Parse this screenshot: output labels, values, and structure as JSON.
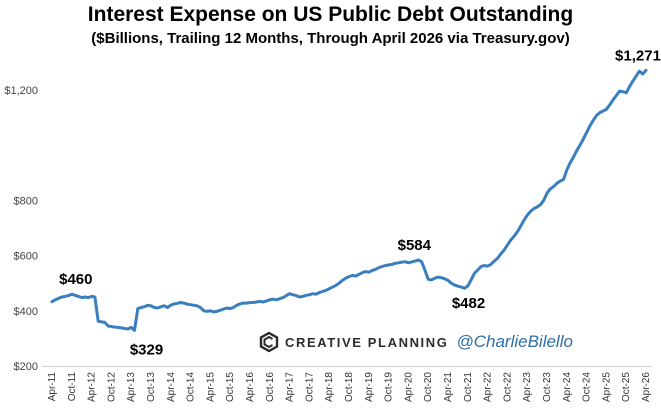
{
  "chart_data": {
    "type": "line",
    "title": "Interest Expense on US Public Debt Outstanding",
    "subtitle": "($Billions, Trailing 12 Months, Through April 2026 via Treasury.gov)",
    "xlabel": "",
    "ylabel": "",
    "ylim": [
      200,
      1300
    ],
    "y_ticks": [
      200,
      400,
      600,
      800,
      1200
    ],
    "y_tick_labels": [
      "$200",
      "$400",
      "$600",
      "$800",
      "$1,200"
    ],
    "x_tick_labels": [
      "Apr-11",
      "Oct-11",
      "Apr-12",
      "Oct-12",
      "Apr-13",
      "Oct-13",
      "Apr-14",
      "Oct-14",
      "Apr-15",
      "Oct-15",
      "Apr-16",
      "Oct-16",
      "Apr-17",
      "Oct-17",
      "Apr-18",
      "Oct-18",
      "Apr-19",
      "Oct-19",
      "Apr-20",
      "Oct-20",
      "Apr-21",
      "Oct-21",
      "Apr-22",
      "Oct-22",
      "Apr-23",
      "Oct-23",
      "Apr-24",
      "Oct-24",
      "Apr-25",
      "Oct-25",
      "Apr-26"
    ],
    "grid": false,
    "line_color": "#3a7ebf",
    "series": [
      {
        "x": [
          0,
          1,
          2,
          3,
          4,
          5,
          6,
          7,
          8,
          9,
          10,
          11,
          12,
          13,
          14,
          15,
          16,
          17,
          18,
          19,
          20,
          21,
          22,
          23,
          24,
          25,
          26,
          27,
          28,
          29,
          30,
          31,
          32,
          33,
          34,
          35,
          36,
          37,
          38,
          39,
          40,
          41,
          42,
          43,
          44,
          45,
          46,
          47,
          48,
          49,
          50,
          51,
          52,
          53,
          54,
          55,
          56,
          57,
          58,
          59,
          60,
          61,
          62,
          63,
          64,
          65,
          66,
          67,
          68,
          69,
          70,
          71,
          72,
          73,
          74,
          75,
          76,
          77,
          78,
          79,
          80,
          81,
          82,
          83,
          84,
          85,
          86,
          87,
          88,
          89,
          90,
          91,
          92,
          93,
          94,
          95,
          96,
          97,
          98,
          99,
          100,
          101,
          102,
          103,
          104,
          105,
          106,
          107,
          108,
          109,
          110,
          111,
          112,
          113,
          114,
          115,
          116,
          117,
          118,
          119,
          120,
          121,
          122,
          123,
          124,
          125,
          126,
          127,
          128,
          129,
          130,
          131,
          132,
          133,
          134,
          135,
          136,
          137,
          138,
          139,
          140,
          141,
          142,
          143,
          144,
          145,
          146,
          147,
          148,
          149,
          150,
          151,
          152,
          153,
          154,
          155,
          156,
          157,
          158,
          159,
          160,
          161,
          162,
          163,
          164,
          165,
          166,
          167,
          168,
          169,
          170,
          171,
          172,
          173,
          174,
          175,
          176,
          177,
          178,
          179,
          180
        ],
        "values": [
          433,
          440,
          445,
          450,
          452,
          455,
          460,
          456,
          452,
          448,
          450,
          448,
          452,
          450,
          362,
          360,
          358,
          345,
          343,
          341,
          340,
          338,
          336,
          334,
          340,
          329,
          408,
          412,
          415,
          420,
          418,
          412,
          410,
          415,
          418,
          412,
          420,
          425,
          427,
          430,
          428,
          424,
          422,
          420,
          418,
          412,
          400,
          398,
          400,
          396,
          398,
          402,
          406,
          410,
          408,
          412,
          420,
          425,
          428,
          428,
          430,
          430,
          432,
          434,
          432,
          436,
          440,
          442,
          440,
          444,
          448,
          455,
          462,
          458,
          455,
          450,
          452,
          456,
          458,
          462,
          460,
          466,
          470,
          474,
          480,
          486,
          492,
          500,
          510,
          518,
          524,
          528,
          526,
          532,
          538,
          542,
          540,
          546,
          550,
          556,
          560,
          564,
          566,
          568,
          572,
          574,
          576,
          578,
          574,
          577,
          580,
          584,
          578,
          548,
          514,
          512,
          518,
          522,
          520,
          516,
          510,
          500,
          493,
          489,
          486,
          482,
          490,
          512,
          536,
          548,
          560,
          564,
          562,
          568,
          580,
          590,
          606,
          620,
          638,
          656,
          670,
          686,
          706,
          728,
          746,
          760,
          770,
          776,
          784,
          800,
          826,
          842,
          850,
          862,
          870,
          876,
          910,
          936,
          956,
          980,
          1000,
          1022,
          1046,
          1070,
          1090,
          1108,
          1118,
          1124,
          1130,
          1146,
          1164,
          1180,
          1196,
          1194,
          1190,
          1212,
          1232,
          1250,
          1268,
          1258,
          1271
        ]
      }
    ],
    "annotations": [
      {
        "x": 6,
        "text": "$460"
      },
      {
        "x": 25,
        "text": "$329"
      },
      {
        "x": 111,
        "text": "$584"
      },
      {
        "x": 125,
        "text": "$482"
      },
      {
        "x": 180,
        "text": "$1,271"
      }
    ]
  },
  "branding": {
    "name": "CREATIVE PLANNING",
    "handle": "@CharlieBilello",
    "logo_icon": "creative-planning-logo-icon",
    "logo_color": "#2b2b2b",
    "handle_color": "#2e6ea5"
  }
}
